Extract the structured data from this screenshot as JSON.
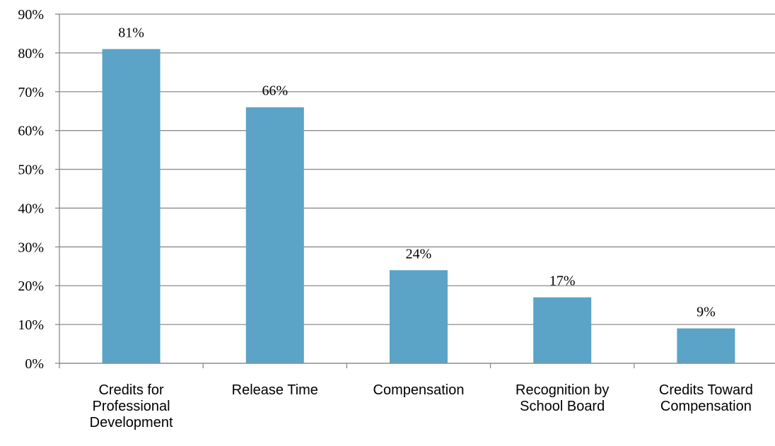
{
  "chart_data": {
    "type": "bar",
    "categories": [
      "Credits for Professional Development",
      "Release Time",
      "Compensation",
      "Recognition by School Board",
      "Credits Toward Compensation"
    ],
    "category_lines": [
      [
        "Credits for",
        "Professional",
        "Development"
      ],
      [
        "Release Time"
      ],
      [
        "Compensation"
      ],
      [
        "Recognition by",
        "School Board"
      ],
      [
        "Credits Toward",
        "Compensation"
      ]
    ],
    "values": [
      81,
      66,
      24,
      17,
      9
    ],
    "data_labels": [
      "81%",
      "66%",
      "24%",
      "17%",
      "9%"
    ],
    "y_ticks": [
      "0%",
      "10%",
      "20%",
      "30%",
      "40%",
      "50%",
      "60%",
      "70%",
      "80%",
      "90%"
    ],
    "ylim": [
      0,
      90
    ],
    "title": "",
    "xlabel": "",
    "ylabel": "",
    "grid": true,
    "bar_color": "#5ba3c7",
    "grid_color": "#8c8c8c"
  }
}
